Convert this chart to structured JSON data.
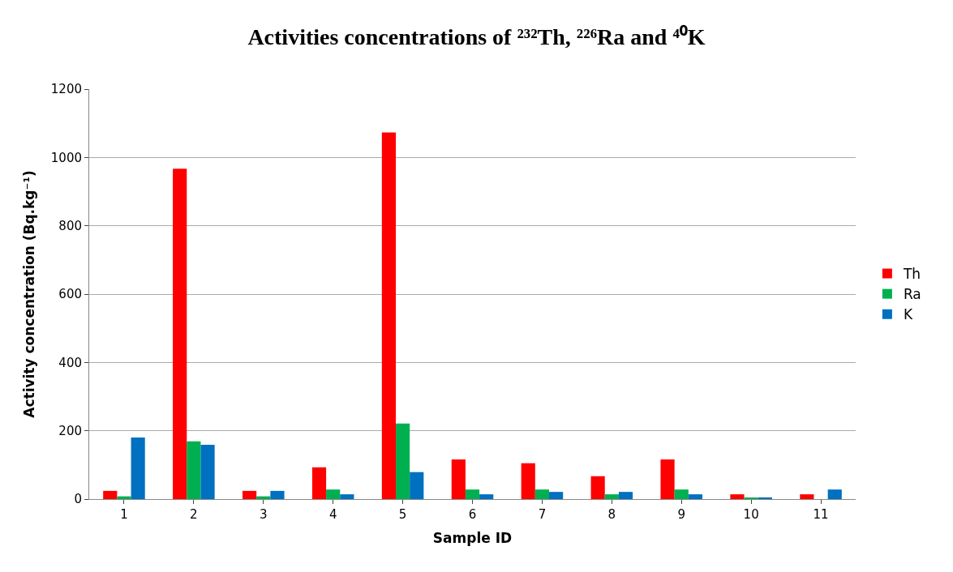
{
  "chart_data": {
    "type": "bar",
    "title": "Activities concentrations of ²³²Th, ²²⁶Ra and ⁴⁰K",
    "xlabel": "Sample ID",
    "ylabel": "Activity concentration (Bq.kg⁻¹)",
    "categories": [
      "1",
      "2",
      "3",
      "4",
      "5",
      "6",
      "7",
      "8",
      "9",
      "10",
      "11"
    ],
    "series": [
      {
        "name": "Th",
        "color": "#ff0000",
        "values": [
          24,
          967,
          24,
          93,
          1073,
          116,
          105,
          67,
          116,
          14,
          14
        ]
      },
      {
        "name": "Ra",
        "color": "#00b050",
        "values": [
          8,
          169,
          8,
          28,
          221,
          28,
          28,
          14,
          28,
          4,
          null
        ]
      },
      {
        "name": "K",
        "color": "#0070c0",
        "values": [
          180,
          159,
          24,
          14,
          79,
          14,
          21,
          21,
          14,
          5,
          28
        ]
      }
    ],
    "ylim": [
      0,
      1200
    ],
    "yticks": [
      0,
      200,
      400,
      600,
      800,
      1000,
      1200
    ],
    "grid": "y",
    "legend": "right"
  }
}
